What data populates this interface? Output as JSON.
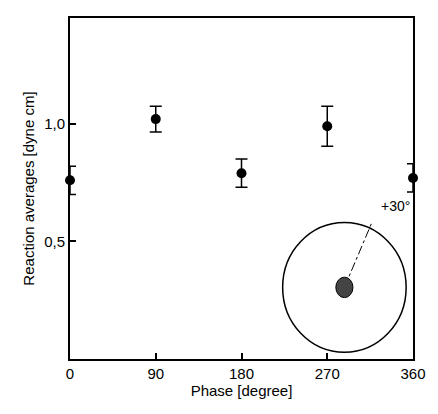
{
  "chart_data": {
    "type": "scatter",
    "x_label": "Phase [degree]",
    "y_label": "Reaction averages [dyne cm]",
    "x": [
      0,
      90,
      180,
      270,
      360
    ],
    "values": [
      0.76,
      1.02,
      0.79,
      0.99,
      0.77
    ],
    "errors": [
      0.06,
      0.055,
      0.06,
      0.085,
      0.06
    ],
    "color": "#000000",
    "marker": "circle",
    "xlim": [
      0,
      360
    ],
    "xticks": [
      0,
      90,
      180,
      270,
      360
    ],
    "ylim": [
      0,
      1.45
    ],
    "yticks": [
      {
        "value": 0.5,
        "label": "0,5"
      },
      {
        "value": 1,
        "label": "1,0"
      }
    ],
    "grid": false,
    "annotations": [
      "+30°"
    ]
  }
}
